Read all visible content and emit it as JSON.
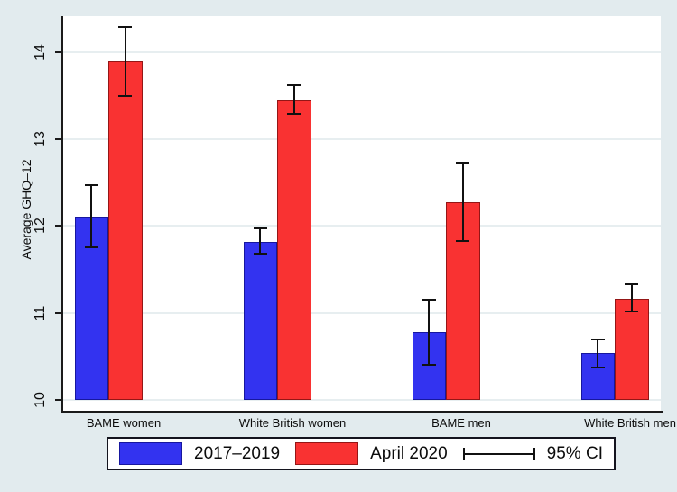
{
  "chart_data": {
    "type": "bar",
    "title": "",
    "ylabel": "Average GHQ–12",
    "xlabel": "",
    "categories": [
      "BAME women",
      "White British women",
      "BAME men",
      "White British men"
    ],
    "series": [
      {
        "name": "2017–2019",
        "color": "#3333f0",
        "border_color": "#17179e",
        "values": [
          12.11,
          11.82,
          10.78,
          10.54
        ],
        "ci_low": [
          11.76,
          11.68,
          10.41,
          10.38
        ],
        "ci_high": [
          12.47,
          11.97,
          11.16,
          10.7
        ]
      },
      {
        "name": "April 2020",
        "color": "#f93232",
        "border_color": "#941616",
        "values": [
          13.89,
          13.45,
          12.27,
          11.17
        ],
        "ci_low": [
          13.5,
          13.29,
          11.83,
          11.02
        ],
        "ci_high": [
          14.29,
          13.62,
          12.72,
          11.33
        ]
      }
    ],
    "ci_label": "95% CI",
    "y_ticks": [
      "10",
      "11",
      "12",
      "13",
      "14"
    ],
    "ylim": [
      9.88,
      14.41
    ],
    "bar_base": 10,
    "grid": true,
    "legend_position": "bottom",
    "error_bars": true,
    "background_color": "#e2ebee",
    "plot_background_color": "#ffffff"
  }
}
